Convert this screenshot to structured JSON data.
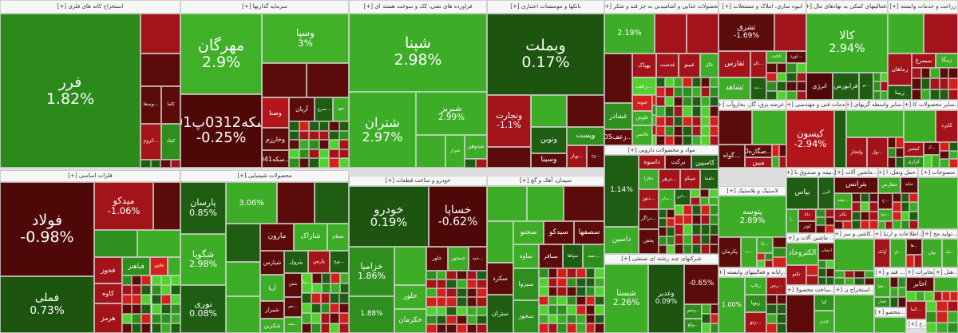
{
  "palette": {
    "dr": "#5c0b0b",
    "r": "#a3141a",
    "br": "#d4201c",
    "dg": "#1f5d12",
    "g": "#2f8f1e",
    "lg": "#3dac27",
    "lime": "#52d230"
  },
  "sectors": [
    {
      "title": "استخراج کانه های فلزی [+]",
      "tiles": [
        {
          "label": "فرر",
          "change": "1.82%",
          "color": "#2c8a1b"
        },
        {
          "label": "",
          "change": "",
          "color": "#a3141a"
        },
        {
          "label": "",
          "change": "",
          "color": "#5c0b0b"
        },
        {
          "label": "...وسعا",
          "color": "#5c0b0b"
        },
        {
          "label": "کاما",
          "color": "#5c0b0b"
        },
        {
          "label": "...کروم",
          "color": "#a3141a"
        },
        {
          "label": "کچاد",
          "color": "#2f8f1e"
        }
      ]
    },
    {
      "title": "سرمایه گذاریها [+]",
      "tiles": [
        {
          "label": "مهرگان",
          "change": "2.9%",
          "color": "#3fb028"
        },
        {
          "label": "وسپا",
          "change": "3%",
          "color": "#3fb028"
        },
        {
          "label": "",
          "color": "#5c0b0b"
        },
        {
          "label": "",
          "color": "#5c0b0b"
        },
        {
          "label": "سکه0312پ01",
          "change": "-0.25%",
          "color": "#4f0808"
        },
        {
          "label": "وصنا",
          "color": "#b3161a"
        },
        {
          "label": "آریان",
          "color": "#5c0b0b"
        },
        {
          "label": "...سرچ",
          "color": "#1f5d12"
        },
        {
          "label": "شهر",
          "color": "#3dac27"
        },
        {
          "label": "وخارزم",
          "color": "#5c0b0b"
        },
        {
          "label": "...سکه041",
          "color": "#5c0b0b"
        }
      ]
    },
    {
      "title": "فراورده های نفتی، کک و سوخت هسته ای [+]",
      "tiles": [
        {
          "label": "شپنا",
          "change": "2.98%",
          "color": "#3dac27"
        },
        {
          "label": "شتران",
          "change": "2.97%",
          "color": "#3dac27"
        },
        {
          "label": "شبریز",
          "change": "2.99%",
          "color": "#3dac27"
        },
        {
          "label": "",
          "color": "#3dac27"
        },
        {
          "label": "شراز",
          "color": "#3dac27"
        },
        {
          "label": "شدوهن",
          "color": "#3dac27"
        }
      ]
    },
    {
      "title": "بانکها و موسسات اعتباری [+]",
      "tiles": [
        {
          "label": "وبملت",
          "change": "0.17%",
          "color": "#1c5410"
        },
        {
          "label": "وتجارت",
          "change": "-1.1%",
          "color": "#a3141a"
        },
        {
          "label": "",
          "color": "#3dac27"
        },
        {
          "label": "",
          "color": "#5c0b0b"
        },
        {
          "label": "وتوین",
          "color": "#1f5d12"
        },
        {
          "label": "وپست",
          "color": "#2f8f1e"
        },
        {
          "label": "",
          "color": "#5c0b0b"
        },
        {
          "label": "وسینا",
          "color": "#5c0b0b"
        },
        {
          "label": "...وپار",
          "color": "#a3141a"
        },
        {
          "label": "...وخ",
          "color": "#5c0b0b"
        }
      ]
    },
    {
      "title": "محصولات غذایی و آشامیدنی به جز قند و شکر [+]",
      "tiles": [
        {
          "label": "",
          "change": "2.19%",
          "color": "#3dac27"
        },
        {
          "label": "",
          "color": "#a3141a"
        },
        {
          "label": "",
          "color": "#a3141a"
        },
        {
          "label": "",
          "color": "#5c0b0b"
        },
        {
          "label": "بهپاک",
          "color": "#a3141a"
        },
        {
          "label": "غدشت",
          "color": "#a3141a"
        },
        {
          "label": "غبینو",
          "color": "#a3141a"
        },
        {
          "label": "غگل",
          "color": "#3dac27"
        },
        {
          "label": "...زغف",
          "color": "#52d230"
        },
        {
          "label": "غشاذر",
          "color": "#2f8f1e"
        },
        {
          "label": "غبونه",
          "color": "#d4201c"
        },
        {
          "label": "غلوش",
          "color": "#3dac27"
        },
        {
          "label": "عالیس",
          "color": "#3dac27"
        },
        {
          "label": "...زعف05",
          "color": "#5c0b0b"
        }
      ]
    },
    {
      "title": "انبوه سازی، املاک و مستغلات [+]",
      "tiles": [
        {
          "label": "ثشرق",
          "change": "-1.69%",
          "color": "#5c0b0b"
        },
        {
          "label": "",
          "color": "#a3141a"
        },
        {
          "label": "ثفارس",
          "color": "#a3141a"
        },
        {
          "label": "...ثالو",
          "color": "#a3141a"
        },
        {
          "label": "ثاخت",
          "color": "#3dac27"
        },
        {
          "label": "...ثپرد",
          "color": "#5c0b0b"
        },
        {
          "label": "ثشاهد",
          "color": "#3dac27"
        },
        {
          "label": "...ثبه",
          "color": "#1f5d12"
        }
      ]
    },
    {
      "title": "...فعالیتهای کمکی به نهادهای مال [+]",
      "tiles": [
        {
          "label": "کالا",
          "change": "2.94%",
          "color": "#3dac27"
        },
        {
          "label": "انرژی",
          "color": "#4f0808"
        },
        {
          "label": "فرابورس",
          "color": "#1f5d12"
        },
        {
          "label": "...بو",
          "color": "#1f5d12"
        }
      ]
    },
    {
      "title": "زراعت و خدمات وابسته [+]",
      "tiles": [
        {
          "label": "",
          "color": "#3dac27"
        },
        {
          "label": "",
          "color": "#a3141a"
        },
        {
          "label": "زماهان",
          "color": "#a3141a"
        },
        {
          "label": "سیمرغ",
          "color": "#a3141a"
        },
        {
          "label": "زمگا",
          "color": "#3dac27"
        },
        {
          "label": "زبینا",
          "color": "#1f5d12"
        }
      ]
    },
    {
      "title": "...عرضه برق، گاز، بخاروآب [+]",
      "tiles": [
        {
          "label": "",
          "color": "#5c0b0b"
        },
        {
          "label": "",
          "color": "#3dac27"
        },
        {
          "label": "...گواه",
          "color": "#5c0b0b"
        },
        {
          "label": "...صگازه0",
          "color": "#5c0b0b"
        },
        {
          "label": "مبین",
          "color": "#a3141a"
        }
      ]
    },
    {
      "title": "خدمات فنی و مهندسی [+]",
      "tiles": [
        {
          "label": "کیسون",
          "change": "-2.94%",
          "color": "#b3161a"
        },
        {
          "label": "",
          "color": "#1f5d12"
        }
      ]
    },
    {
      "title": "...سایر واسطه گریهای [+]",
      "tiles": [
        {
          "label": "",
          "color": "#3dac27"
        },
        {
          "label": "ولتجار",
          "color": "#a3141a"
        },
        {
          "label": "...ول",
          "color": "#a3141a"
        }
      ]
    },
    {
      "title": "...سایر محصولات کا [+]",
      "tiles": [
        {
          "label": "",
          "color": "#3dac27"
        },
        {
          "label": "کایزد",
          "color": "#a3141a"
        },
        {
          "label": "کیشیر",
          "color": "#a3141a"
        },
        {
          "label": "کرازی",
          "color": "#2f8f1e"
        },
        {
          "label": "...ک",
          "color": "#5c0b0b"
        }
      ]
    },
    {
      "title": "فلزات اساسی [+]",
      "tiles": [
        {
          "label": "فولاد",
          "change": "-0.98%",
          "color": "#4f0808"
        },
        {
          "label": "فملی",
          "change": "0.73%",
          "color": "#1c5410"
        },
        {
          "label": "میدکو",
          "change": "-1.06%",
          "color": "#a3141a"
        },
        {
          "label": "",
          "color": "#5c0b0b"
        },
        {
          "label": "",
          "color": "#2f8f1e"
        },
        {
          "label": "",
          "color": "#3dac27"
        },
        {
          "label": "فخوز",
          "color": "#a3141a"
        },
        {
          "label": "کاوه",
          "color": "#a3141a"
        },
        {
          "label": "هرمز",
          "color": "#a3141a"
        },
        {
          "label": "فباهنر",
          "color": "#2f8f1e"
        },
        {
          "label": "فالوم",
          "color": "#d4201c"
        },
        {
          "label": "",
          "color": "#3dac27"
        }
      ]
    },
    {
      "title": "محصولات شیمیایی [+]",
      "tiles": [
        {
          "label": "پارسان",
          "change": "0.85%",
          "color": "#1f5d12"
        },
        {
          "label": "شگویا",
          "change": "2.98%",
          "color": "#3dac27"
        },
        {
          "label": "نوری",
          "change": "0.08%",
          "color": "#1f5d12"
        },
        {
          "label": "",
          "change": "3.06%",
          "color": "#3dac27"
        },
        {
          "label": "",
          "color": "#5c0b0b"
        },
        {
          "label": "",
          "color": "#1f5d12"
        },
        {
          "label": "",
          "color": "#1f5d12"
        },
        {
          "label": "مارون",
          "color": "#5c0b0b"
        },
        {
          "label": "شاراک",
          "color": "#3dac27"
        },
        {
          "label": "شغام",
          "color": "#3dac27"
        },
        {
          "label": "",
          "color": "#3dac27"
        },
        {
          "label": "",
          "color": "#3dac27"
        },
        {
          "label": "شپارس",
          "color": "#5c0b0b"
        },
        {
          "label": "پترول",
          "color": "#1f5d12"
        },
        {
          "label": "پارس",
          "color": "#a3141a"
        },
        {
          "label": "...بوع",
          "color": "#1f5d12"
        },
        {
          "label": "آریا",
          "color": "#3dac27"
        },
        {
          "label": "شفن",
          "color": "#5c0b0b"
        },
        {
          "label": "...شا",
          "color": "#52d230"
        },
        {
          "label": "شیراز",
          "color": "#5c0b0b"
        },
        {
          "label": "...جم",
          "color": "#5c0b0b"
        },
        {
          "label": "شکربن",
          "color": "#3dac27"
        },
        {
          "label": "...شد",
          "color": "#3dac27"
        }
      ]
    },
    {
      "title": "خودرو و ساخت قطعات [+]",
      "tiles": [
        {
          "label": "خودرو",
          "change": "0.19%",
          "color": "#1c5410"
        },
        {
          "label": "خساپا",
          "change": "-0.62%",
          "color": "#4f0808"
        },
        {
          "label": "خزامیا",
          "change": "1.86%",
          "color": "#2f8f1e"
        },
        {
          "label": "",
          "change": "1.88%",
          "color": "#2f8f1e"
        },
        {
          "label": "",
          "color": "#3dac27"
        },
        {
          "label": "خلور",
          "color": "#3dac27"
        },
        {
          "label": "خکرمان",
          "color": "#3dac27"
        },
        {
          "label": "خاور",
          "color": "#5c0b0b"
        },
        {
          "label": "خمحور",
          "color": "#3dac27"
        },
        {
          "label": "...خبه",
          "color": "#5c0b0b"
        }
      ]
    },
    {
      "title": "سیمان، آهک و گچ [+]",
      "tiles": [
        {
          "label": "",
          "color": "#3dac27"
        },
        {
          "label": "",
          "color": "#3dac27"
        },
        {
          "label": "",
          "color": "#5c0b0b"
        },
        {
          "label": "",
          "color": "#3dac27"
        },
        {
          "label": "سجنو",
          "color": "#3dac27"
        },
        {
          "label": "سیدکو",
          "color": "#5c0b0b"
        },
        {
          "label": "سصفها",
          "color": "#5c0b0b"
        },
        {
          "label": "سکرد",
          "color": "#5c0b0b"
        },
        {
          "label": "ستران",
          "color": "#1f5d12"
        },
        {
          "label": "ساوه",
          "color": "#3dac27"
        },
        {
          "label": "سباقر",
          "color": "#5c0b0b"
        },
        {
          "label": "سپاها",
          "color": "#1f5d12"
        },
        {
          "label": "...سه",
          "color": "#2f8f1e"
        },
        {
          "label": "سبزوا",
          "color": "#2f8f1e"
        },
        {
          "label": "سخوز",
          "color": "#2f8f1e"
        }
      ]
    },
    {
      "title": "مواد و محصولات دارویی [+]",
      "tiles": [
        {
          "label": "",
          "change": "1.14%",
          "color": "#1f5d12"
        },
        {
          "label": "داسوه",
          "color": "#a3141a"
        },
        {
          "label": "برکت",
          "color": "#5c0b0b"
        },
        {
          "label": "کاسپین",
          "color": "#1f5d12"
        },
        {
          "label": "دفارا",
          "color": "#3dac27"
        },
        {
          "label": "...دزهر",
          "color": "#a3141a"
        },
        {
          "label": "تیپیکو",
          "color": "#a3141a"
        },
        {
          "label": "دلقما",
          "color": "#1f5d12"
        },
        {
          "label": "...دتوز",
          "color": "#a3141a"
        },
        {
          "label": "...دیابر",
          "color": "#3dac27"
        },
        {
          "label": "...دارو",
          "color": "#1f5d12"
        },
        {
          "label": "...دراگر",
          "color": "#5c0b0b"
        },
        {
          "label": "پخش",
          "color": "#5c0b0b"
        },
        {
          "label": "داسین",
          "color": "#3dac27"
        }
      ]
    },
    {
      "title": "شرکتهای چند رشته ای صنعتی [+]",
      "tiles": [
        {
          "label": "شستا",
          "change": "2.26%",
          "color": "#3dac27"
        },
        {
          "label": "وغدیر",
          "change": "0.09%",
          "color": "#1c5410"
        },
        {
          "label": "",
          "change": "-0.65%",
          "color": "#5c0b0b"
        },
        {
          "label": "...وحص",
          "color": "#2f8f1e"
        },
        {
          "label": "...وکغ",
          "color": "#2f8f1e"
        }
      ]
    },
    {
      "title": "لاستیک و پلاستیک [+]",
      "tiles": [
        {
          "label": "پتوسه",
          "change": "2.89%",
          "color": "#3dac27"
        },
        {
          "label": "پکرمان",
          "color": "#5c0b0b"
        },
        {
          "label": "...پ",
          "color": "#3dac27"
        },
        {
          "label": "...پلا",
          "color": "#3dac27"
        }
      ]
    },
    {
      "title": "...بیمه و صندوق با [+]",
      "tiles": [
        {
          "label": "بپاس",
          "color": "#1f5d12"
        },
        {
          "label": "البرز",
          "color": "#1f5d12"
        },
        {
          "label": "...آ",
          "color": "#3dac27"
        },
        {
          "label": "دانا",
          "color": "#a3141a"
        },
        {
          "label": "کوثر",
          "color": "#5c0b0b"
        }
      ]
    },
    {
      "title": "...ماشین آلات [+]",
      "tiles": [
        {
          "label": "بترانس",
          "color": "#5c0b0b"
        },
        {
          "label": "...بشه",
          "color": "#3dac27"
        },
        {
          "label": "بکام",
          "color": "#a3141a"
        }
      ]
    },
    {
      "title": "...حمل ونقل، ا [+]",
      "tiles": [
        {
          "label": "حفارس",
          "color": "#3dac27"
        },
        {
          "label": "حتاید",
          "color": "#5c0b0b"
        },
        {
          "label": "...ح",
          "color": "#5c0b0b"
        },
        {
          "label": "...حپا",
          "color": "#3dac27"
        }
      ]
    },
    {
      "title": "منسوجات [+]",
      "tiles": [
        {
          "label": "",
          "color": "#3dac27"
        }
      ]
    },
    {
      "title": "... ماشین آلات و [+]",
      "tiles": [
        {
          "label": "الکتروحاد",
          "color": "#3dac27"
        },
        {
          "label": "انتخاب",
          "color": "#5c0b0b"
        },
        {
          "label": "تکنو",
          "color": "#a3141a"
        }
      ]
    },
    {
      "title": "...کاشی و سر [+]",
      "tiles": [
        {
          "label": "",
          "color": "#3dac27"
        }
      ]
    },
    {
      "title": "...اطلاعات و ارتبا [+]",
      "tiles": [
        {
          "label": "آوانک",
          "color": "#a3141a"
        },
        {
          "label": "...او",
          "color": "#3dac27"
        },
        {
          "label": "...ها",
          "color": "#5c0b0b"
        }
      ]
    },
    {
      "title": "...تولید مح [+]",
      "tiles": [
        {
          "label": "نیان",
          "color": "#3dac27"
        },
        {
          "label": "...ماد",
          "color": "#3dac27"
        }
      ]
    },
    {
      "title": "...رایانه و فعالیتهای وابسته [+]",
      "tiles": [
        {
          "label": "",
          "change": "1.00%",
          "color": "#3dac27"
        },
        {
          "label": "رتاپ",
          "color": "#3dac27"
        },
        {
          "label": "...رس",
          "color": "#a3141a"
        },
        {
          "label": "ریویا",
          "color": "#2f8f1e"
        },
        {
          "label": "...رتو",
          "color": "#a3141a"
        }
      ]
    },
    {
      "title": "...ساخت محصولا [+]",
      "tiles": [
        {
          "label": "",
          "color": "#5c0b0b"
        },
        {
          "label": "کیا",
          "color": "#2f8f1e"
        },
        {
          "label": "چدن",
          "color": "#3dac27"
        }
      ]
    },
    {
      "title": "...استخراج ن [+]",
      "tiles": [
        {
          "label": "",
          "color": "#3dac27"
        }
      ]
    },
    {
      "title": "... قند و [+]",
      "tiles": [
        {
          "label": "...قفا",
          "color": "#3dac27"
        },
        {
          "label": "قجار",
          "color": "#2f8f1e"
        }
      ]
    },
    {
      "title": "مخابرات [+]",
      "tiles": [
        {
          "label": "اخابر",
          "color": "#5c0b0b"
        }
      ]
    },
    {
      "title": "...هتل [+]",
      "tiles": [
        {
          "label": "",
          "color": "#3dac27"
        }
      ]
    },
    {
      "title": "...محصو [+]",
      "tiles": [
        {
          "label": "",
          "color": "#3dac27"
        }
      ]
    },
    {
      "title": "...خ [+]",
      "tiles": [
        {
          "label": "...کما",
          "color": "#a3141a"
        }
      ]
    }
  ]
}
